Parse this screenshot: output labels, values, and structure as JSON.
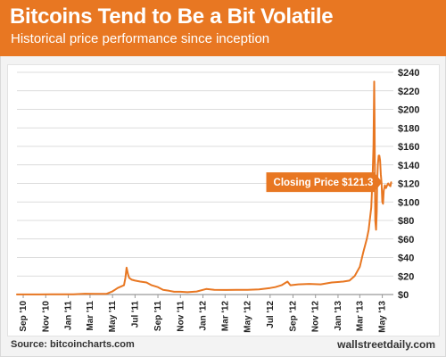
{
  "header": {
    "title": "Bitcoins Tend to Be a Bit Volatile",
    "subtitle": "Historical price performance since inception"
  },
  "footer": {
    "source": "Source: bitcoincharts.com",
    "brand": "wallstreetdaily.com"
  },
  "colors": {
    "accent": "#e87722",
    "line": "#e87722",
    "grid": "#d0d0d0"
  },
  "chart_data": {
    "type": "line",
    "title": "Bitcoins Tend to Be a Bit Volatile",
    "subtitle": "Historical price performance since inception",
    "xlabel": "",
    "ylabel": "",
    "xlim": [
      "2010-08-15",
      "2013-05-31"
    ],
    "ylim": [
      0,
      240
    ],
    "y_ticks": [
      0,
      20,
      40,
      60,
      80,
      100,
      120,
      140,
      160,
      180,
      200,
      220,
      240
    ],
    "y_tick_labels": [
      "$0",
      "$20",
      "$40",
      "$60",
      "$80",
      "$100",
      "$120",
      "$140",
      "$160",
      "$180",
      "$200",
      "$220",
      "$240"
    ],
    "x_ticks": [
      "2010-09-01",
      "2010-11-01",
      "2011-01-01",
      "2011-03-01",
      "2011-05-01",
      "2011-07-01",
      "2011-09-01",
      "2011-11-01",
      "2012-01-01",
      "2012-03-01",
      "2012-05-01",
      "2012-07-01",
      "2012-09-01",
      "2012-11-01",
      "2013-01-01",
      "2013-03-01",
      "2013-05-01"
    ],
    "x_tick_labels": [
      "Sep '10",
      "Nov '10",
      "Jan '11",
      "Mar '11",
      "May '11",
      "Jul '11",
      "Sep '11",
      "Nov '11",
      "Jan '12",
      "Mar '12",
      "May '12",
      "Jul '12",
      "Sep '12",
      "Nov '12",
      "Jan '13",
      "Mar '13",
      "May '13"
    ],
    "grid": "horizontal",
    "annotation": {
      "text": "Closing Price $121.3",
      "date": "2013-05-25",
      "value": 121.3
    },
    "series": [
      {
        "x": [
          "2010-08-15",
          "2010-09-15",
          "2010-10-15",
          "2010-11-15",
          "2010-12-15",
          "2011-01-15",
          "2011-02-15",
          "2011-03-15",
          "2011-04-15",
          "2011-05-01",
          "2011-05-15",
          "2011-06-01",
          "2011-06-05",
          "2011-06-08",
          "2011-06-12",
          "2011-06-15",
          "2011-06-22",
          "2011-07-01",
          "2011-07-15",
          "2011-08-01",
          "2011-08-15",
          "2011-09-01",
          "2011-09-15",
          "2011-10-01",
          "2011-10-15",
          "2011-11-01",
          "2011-11-20",
          "2011-12-15",
          "2012-01-10",
          "2012-02-01",
          "2012-03-01",
          "2012-04-01",
          "2012-05-01",
          "2012-06-01",
          "2012-07-01",
          "2012-07-15",
          "2012-08-01",
          "2012-08-17",
          "2012-08-25",
          "2012-09-15",
          "2012-10-15",
          "2012-11-15",
          "2012-12-15",
          "2013-01-15",
          "2013-02-01",
          "2013-02-15",
          "2013-03-01",
          "2013-03-10",
          "2013-03-20",
          "2013-03-25",
          "2013-04-01",
          "2013-04-05",
          "2013-04-07",
          "2013-04-09",
          "2013-04-10",
          "2013-04-11",
          "2013-04-12",
          "2013-04-14",
          "2013-04-16",
          "2013-04-17",
          "2013-04-19",
          "2013-04-21",
          "2013-04-23",
          "2013-04-25",
          "2013-04-27",
          "2013-04-29",
          "2013-05-01",
          "2013-05-03",
          "2013-05-05",
          "2013-05-08",
          "2013-05-11",
          "2013-05-14",
          "2013-05-17",
          "2013-05-20",
          "2013-05-23",
          "2013-05-25"
        ],
        "values": [
          0.07,
          0.06,
          0.1,
          0.25,
          0.25,
          0.3,
          0.9,
          0.8,
          0.8,
          3.5,
          7,
          10,
          18,
          29,
          22,
          18,
          16,
          15,
          14,
          13,
          10,
          8,
          5,
          4,
          3,
          3,
          2.5,
          3.3,
          6,
          5,
          4.9,
          5,
          5.1,
          5.5,
          7,
          8,
          10,
          14,
          10,
          11,
          11.5,
          11,
          13,
          14,
          15,
          20,
          30,
          45,
          60,
          70,
          94,
          130,
          160,
          230,
          190,
          130,
          80,
          70,
          90,
          120,
          140,
          150,
          150,
          145,
          130,
          120,
          100,
          98,
          112,
          118,
          115,
          118,
          120,
          118,
          117,
          121.3
        ]
      }
    ]
  }
}
